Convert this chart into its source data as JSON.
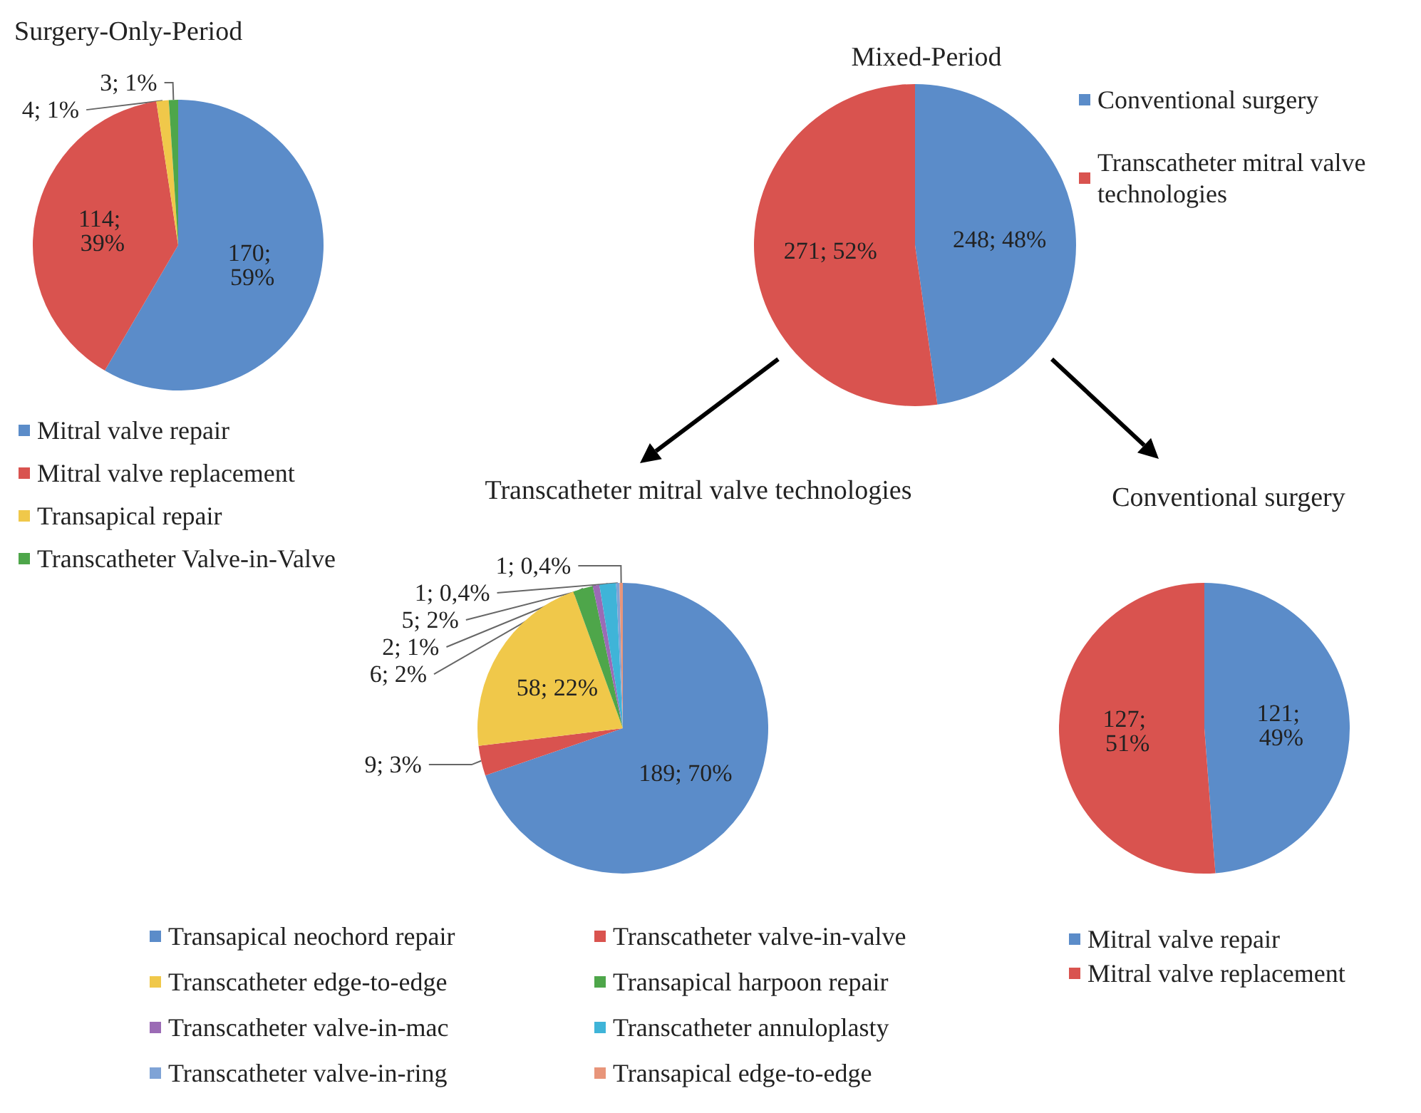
{
  "chart_data": [
    {
      "type": "pie",
      "title": "Surgery-Only-Period",
      "categories": [
        "Mitral valve repair",
        "Mitral valve replacement",
        "Transapical repair",
        "Transcatheter Valve-in-Valve"
      ],
      "values": [
        170,
        114,
        4,
        3
      ],
      "value_labels": [
        "170; 59%",
        "114; 39%",
        "4; 1%",
        "3; 1%"
      ],
      "colors": [
        "#5b8cc9",
        "#d9534f",
        "#f0c84a",
        "#4ea64a"
      ],
      "legend": "bottom"
    },
    {
      "type": "pie",
      "title": "Mixed-Period",
      "categories": [
        "Conventional surgery",
        "Transcatheter mitral valve technologies"
      ],
      "values": [
        248,
        271
      ],
      "value_labels": [
        "248; 48%",
        "271; 52%"
      ],
      "colors": [
        "#5b8cc9",
        "#d9534f"
      ],
      "legend": "right"
    },
    {
      "type": "pie",
      "title": "Transcatheter mitral valve technologies",
      "categories": [
        "Transapical neochord repair",
        "Transcatheter valve-in-valve",
        "Transcatheter edge-to-edge",
        "Transapical harpoon repair",
        "Transcatheter valve-in-mac",
        "Transcatheter annuloplasty",
        "Transcatheter valve-in-ring",
        "Transapical edge-to-edge"
      ],
      "values": [
        189,
        9,
        58,
        6,
        2,
        5,
        1,
        1
      ],
      "value_labels": [
        "189; 70%",
        "9; 3%",
        "58; 22%",
        "6; 2%",
        "2; 1%",
        "5; 2%",
        "1; 0,4%",
        "1; 0,4%"
      ],
      "colors": [
        "#5b8cc9",
        "#d9534f",
        "#f0c84a",
        "#4ea64a",
        "#9b6bb5",
        "#3fb4d8",
        "#7fa3d6",
        "#e8957a"
      ],
      "legend": "bottom"
    },
    {
      "type": "pie",
      "title": "Conventional surgery",
      "categories": [
        "Mitral valve repair",
        "Mitral valve replacement"
      ],
      "values": [
        121,
        127
      ],
      "value_labels": [
        "121; 49%",
        "127; 51%"
      ],
      "colors": [
        "#5b8cc9",
        "#d9534f"
      ],
      "legend": "bottom"
    }
  ]
}
